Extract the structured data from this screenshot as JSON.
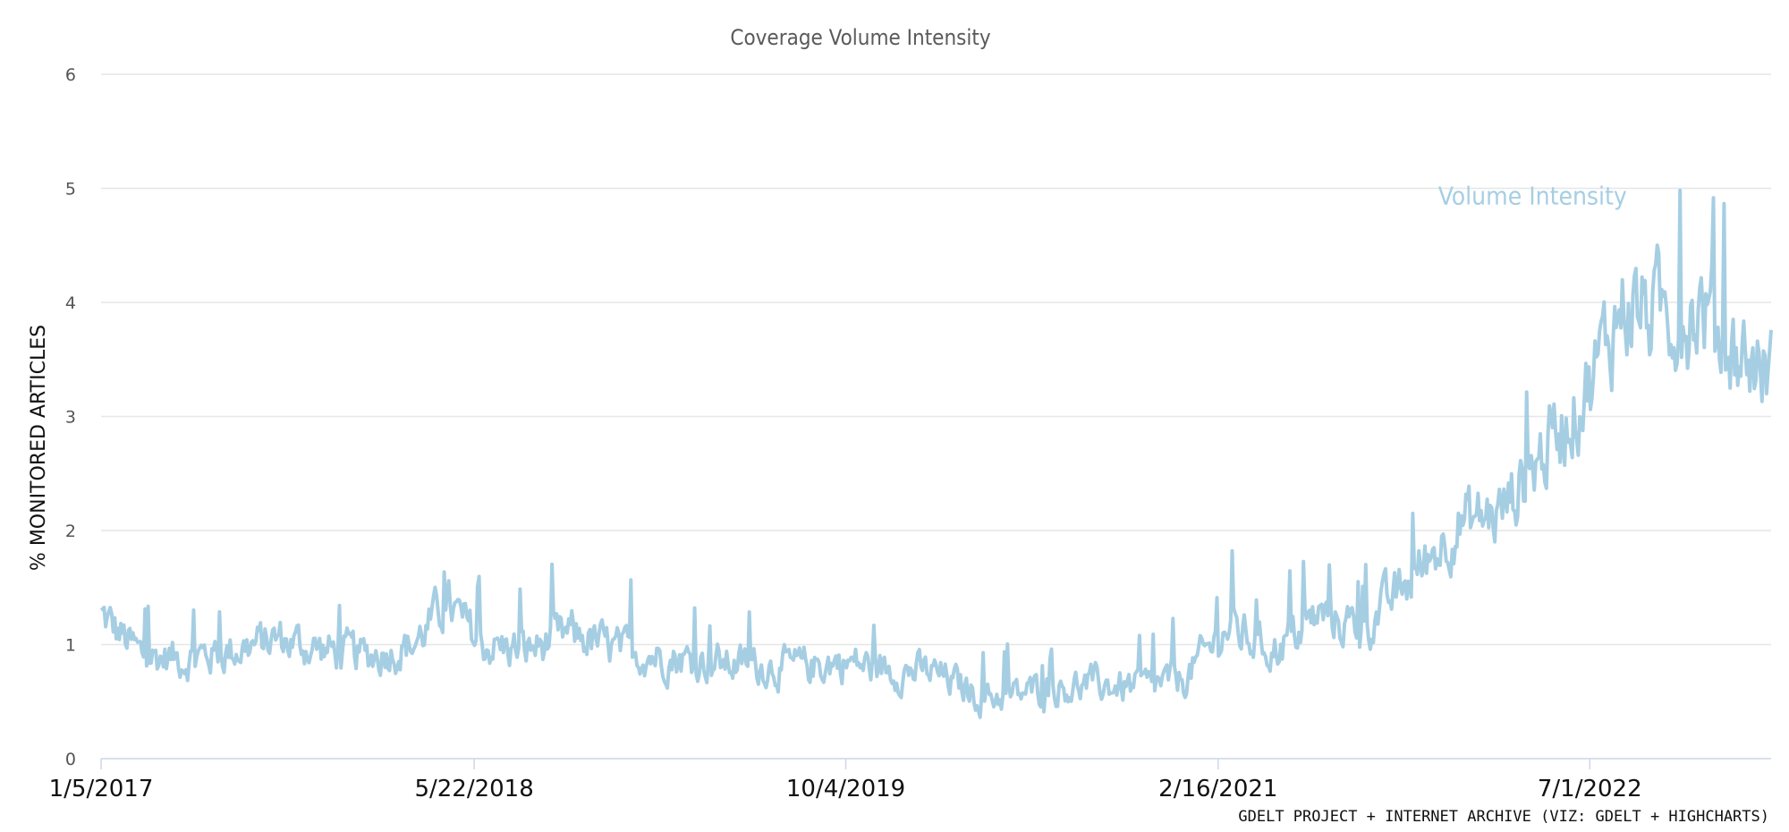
{
  "chart_data": {
    "type": "line",
    "title": "Coverage Volume Intensity",
    "ylabel": "% MONITORED ARTICLES",
    "xlabel": "",
    "ylim": [
      0,
      6
    ],
    "yticks": [
      "0",
      "1",
      "2",
      "3",
      "4",
      "5",
      "6"
    ],
    "xticks": [
      "1/5/2017",
      "5/22/2018",
      "10/4/2019",
      "2/16/2021",
      "7/1/2022"
    ],
    "x_start": "1/5/2017",
    "x_end": "3/2/2023",
    "grid": true,
    "legend": "none",
    "credit": "GDELT PROJECT + INTERNET ARCHIVE (VIZ: GDELT + HIGHCHARTS)",
    "series": [
      {
        "name": "Volume Intensity",
        "color": "#a6cee3",
        "x": [
          "2017-01-05",
          "2017-03-01",
          "2017-05-01",
          "2017-07-01",
          "2017-09-01",
          "2017-11-01",
          "2018-01-01",
          "2018-03-01",
          "2018-04-15",
          "2018-06-01",
          "2018-08-01",
          "2018-10-01",
          "2018-12-01",
          "2019-02-01",
          "2019-04-01",
          "2019-06-01",
          "2019-08-01",
          "2019-10-01",
          "2019-12-01",
          "2020-02-01",
          "2020-04-01",
          "2020-05-15",
          "2020-07-01",
          "2020-09-01",
          "2020-11-01",
          "2021-01-01",
          "2021-03-01",
          "2021-05-01",
          "2021-07-01",
          "2021-09-01",
          "2021-11-01",
          "2022-01-01",
          "2022-03-01",
          "2022-05-01",
          "2022-07-01",
          "2022-08-15",
          "2022-10-01",
          "2022-12-01",
          "2023-01-15",
          "2023-03-02"
        ],
        "y": [
          1.25,
          0.9,
          0.88,
          0.95,
          1.05,
          0.95,
          0.9,
          1.0,
          1.35,
          1.0,
          0.95,
          1.1,
          0.95,
          0.9,
          0.85,
          0.82,
          0.8,
          0.85,
          0.78,
          0.75,
          0.55,
          0.55,
          0.62,
          0.65,
          0.62,
          0.7,
          1.15,
          0.95,
          1.25,
          1.15,
          1.55,
          2.05,
          2.15,
          2.7,
          3.3,
          4.0,
          3.9,
          3.95,
          3.55,
          3.4
        ]
      }
    ]
  }
}
